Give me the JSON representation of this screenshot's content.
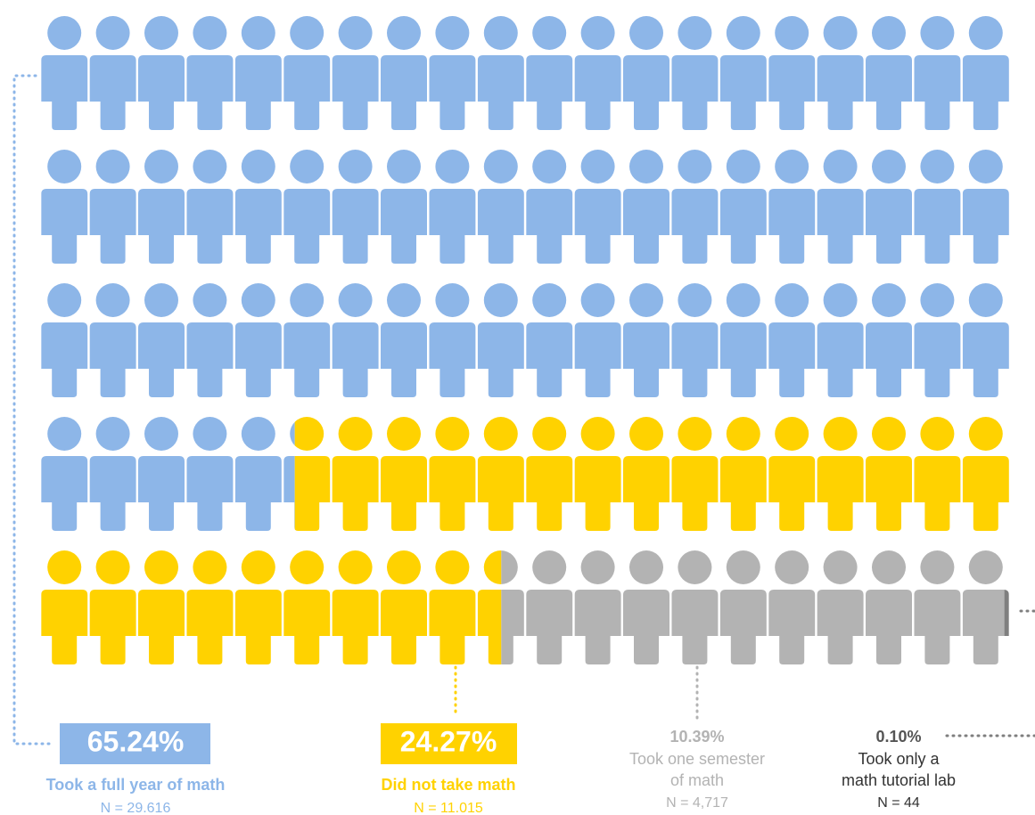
{
  "chart_data": {
    "type": "pictogram",
    "categories": [
      "Took a full year of math",
      "Did not take math",
      "Took one semester of math",
      "Took only a math tutorial lab"
    ],
    "label_lines": [
      [
        "Took a full year of math"
      ],
      [
        "Did not take math"
      ],
      [
        "Took one semester",
        "of math"
      ],
      [
        "Took only a",
        "math tutorial lab"
      ]
    ],
    "values": [
      65.24,
      24.27,
      10.39,
      0.1
    ],
    "value_labels": [
      "65.24%",
      "24.27%",
      "10.39%",
      "0.10%"
    ],
    "n_labels": [
      "N = 29.616",
      "N = 11.015",
      "N = 4,717",
      "N = 44"
    ],
    "colors": [
      "#8db6e8",
      "#ffd200",
      "#b3b3b3",
      "#7f7f7f"
    ]
  }
}
